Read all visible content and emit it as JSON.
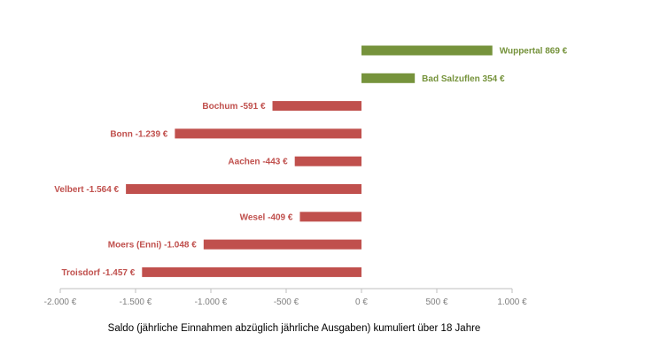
{
  "colors": {
    "positive": "#76933c",
    "negative": "#c0504d",
    "axis": "#bfbfbf",
    "tick_text": "#7f7f7f"
  },
  "chart_data": {
    "type": "bar",
    "orientation": "horizontal",
    "categories": [
      "Wuppertal",
      "Bad Salzuflen",
      "Bochum",
      "Bonn",
      "Aachen",
      "Velbert",
      "Wesel",
      "Moers (Enni)",
      "Troisdorf"
    ],
    "values": [
      869,
      354,
      -591,
      -1239,
      -443,
      -1564,
      -409,
      -1048,
      -1457
    ],
    "data_labels": [
      "Wuppertal  869 €",
      "Bad Salzuflen  354 €",
      "Bochum -591 €",
      "Bonn -1.239 €",
      "Aachen -443 €",
      "Velbert -1.564 €",
      "Wesel -409 €",
      "Moers (Enni) -1.048 €",
      "Troisdorf -1.457 €"
    ],
    "xlim": [
      -2000,
      1000
    ],
    "xticks": [
      -2000,
      -1500,
      -1000,
      -500,
      0,
      500,
      1000
    ],
    "xtick_labels": [
      "-2.000 €",
      "-1.500 €",
      "-1.000 €",
      "-500 €",
      "0 €",
      "500 €",
      "1.000 €"
    ],
    "xlabel": "Saldo (jährliche Einnahmen abzüglich jährliche Ausgaben) kumuliert über 18 Jahre",
    "grid": false
  }
}
